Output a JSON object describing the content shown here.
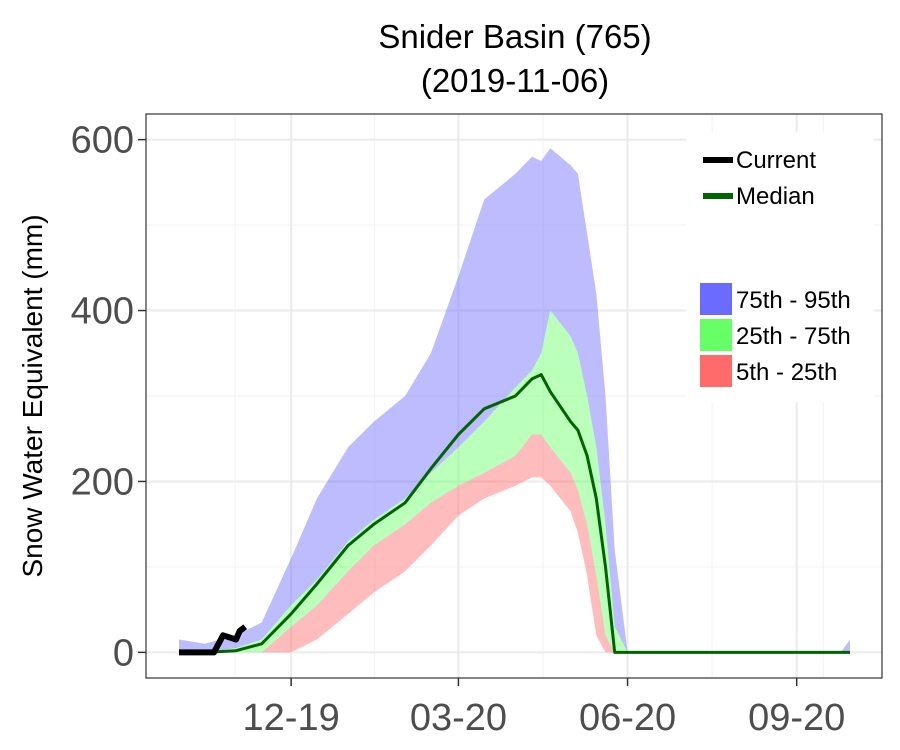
{
  "chart_data": {
    "type": "area",
    "title": "Snider Basin (765)",
    "subtitle": "(2019-11-06)",
    "ylabel": "Snow Water Equivalent (mm)",
    "xlabel": "",
    "x_ticks": [
      "12-19",
      "03-20",
      "06-20",
      "09-20"
    ],
    "y_ticks": [
      0,
      200,
      400,
      600
    ],
    "ylim": [
      -30,
      630
    ],
    "grid": true,
    "legend_position": "top-right",
    "legend_lines": [
      {
        "name": "Current",
        "color": "#000000"
      },
      {
        "name": "Median",
        "color": "#006400"
      }
    ],
    "legend_bands": [
      {
        "name": "75th - 95th",
        "color": "#6b6bff"
      },
      {
        "name": "25th - 75th",
        "color": "#66ff66"
      },
      {
        "name": "5th - 25th",
        "color": "#ff6b6b"
      }
    ],
    "dates": [
      "10-01",
      "10-15",
      "11-01",
      "11-15",
      "12-01",
      "12-15",
      "01-01",
      "01-15",
      "02-01",
      "02-15",
      "03-01",
      "03-15",
      "04-01",
      "04-10",
      "04-15",
      "04-20",
      "05-01",
      "05-05",
      "05-10",
      "05-15",
      "05-20",
      "05-25",
      "06-01",
      "06-05",
      "06-15",
      "07-01",
      "08-01",
      "09-01",
      "09-20",
      "09-25",
      "09-30"
    ],
    "series": [
      {
        "name": "95th",
        "values": [
          15,
          10,
          20,
          35,
          110,
          180,
          240,
          270,
          300,
          350,
          440,
          530,
          560,
          580,
          575,
          590,
          570,
          560,
          490,
          420,
          300,
          120,
          0,
          0,
          0,
          0,
          0,
          0,
          0,
          0,
          15
        ]
      },
      {
        "name": "75th",
        "values": [
          0,
          0,
          5,
          15,
          55,
          85,
          130,
          155,
          180,
          210,
          240,
          270,
          310,
          330,
          350,
          400,
          370,
          350,
          300,
          240,
          150,
          30,
          0,
          0,
          0,
          0,
          0,
          0,
          0,
          0,
          0
        ]
      },
      {
        "name": "Median",
        "values": [
          0,
          0,
          2,
          10,
          45,
          80,
          125,
          150,
          175,
          215,
          255,
          285,
          300,
          320,
          325,
          305,
          270,
          260,
          230,
          180,
          100,
          0,
          0,
          0,
          0,
          0,
          0,
          0,
          0,
          0,
          0
        ]
      },
      {
        "name": "25th",
        "values": [
          0,
          0,
          0,
          0,
          30,
          55,
          95,
          125,
          150,
          175,
          195,
          210,
          230,
          255,
          255,
          240,
          210,
          190,
          150,
          90,
          20,
          0,
          0,
          0,
          0,
          0,
          0,
          0,
          0,
          0,
          0
        ]
      },
      {
        "name": "5th",
        "values": [
          0,
          0,
          0,
          0,
          0,
          15,
          45,
          70,
          95,
          125,
          160,
          180,
          195,
          205,
          205,
          195,
          165,
          140,
          90,
          20,
          0,
          0,
          0,
          0,
          0,
          0,
          0,
          0,
          0,
          0,
          0
        ]
      }
    ],
    "current": {
      "name": "Current",
      "dates": [
        "10-01",
        "10-20",
        "10-25",
        "11-01",
        "11-03",
        "11-06"
      ],
      "values": [
        0,
        0,
        20,
        15,
        25,
        30
      ]
    }
  }
}
